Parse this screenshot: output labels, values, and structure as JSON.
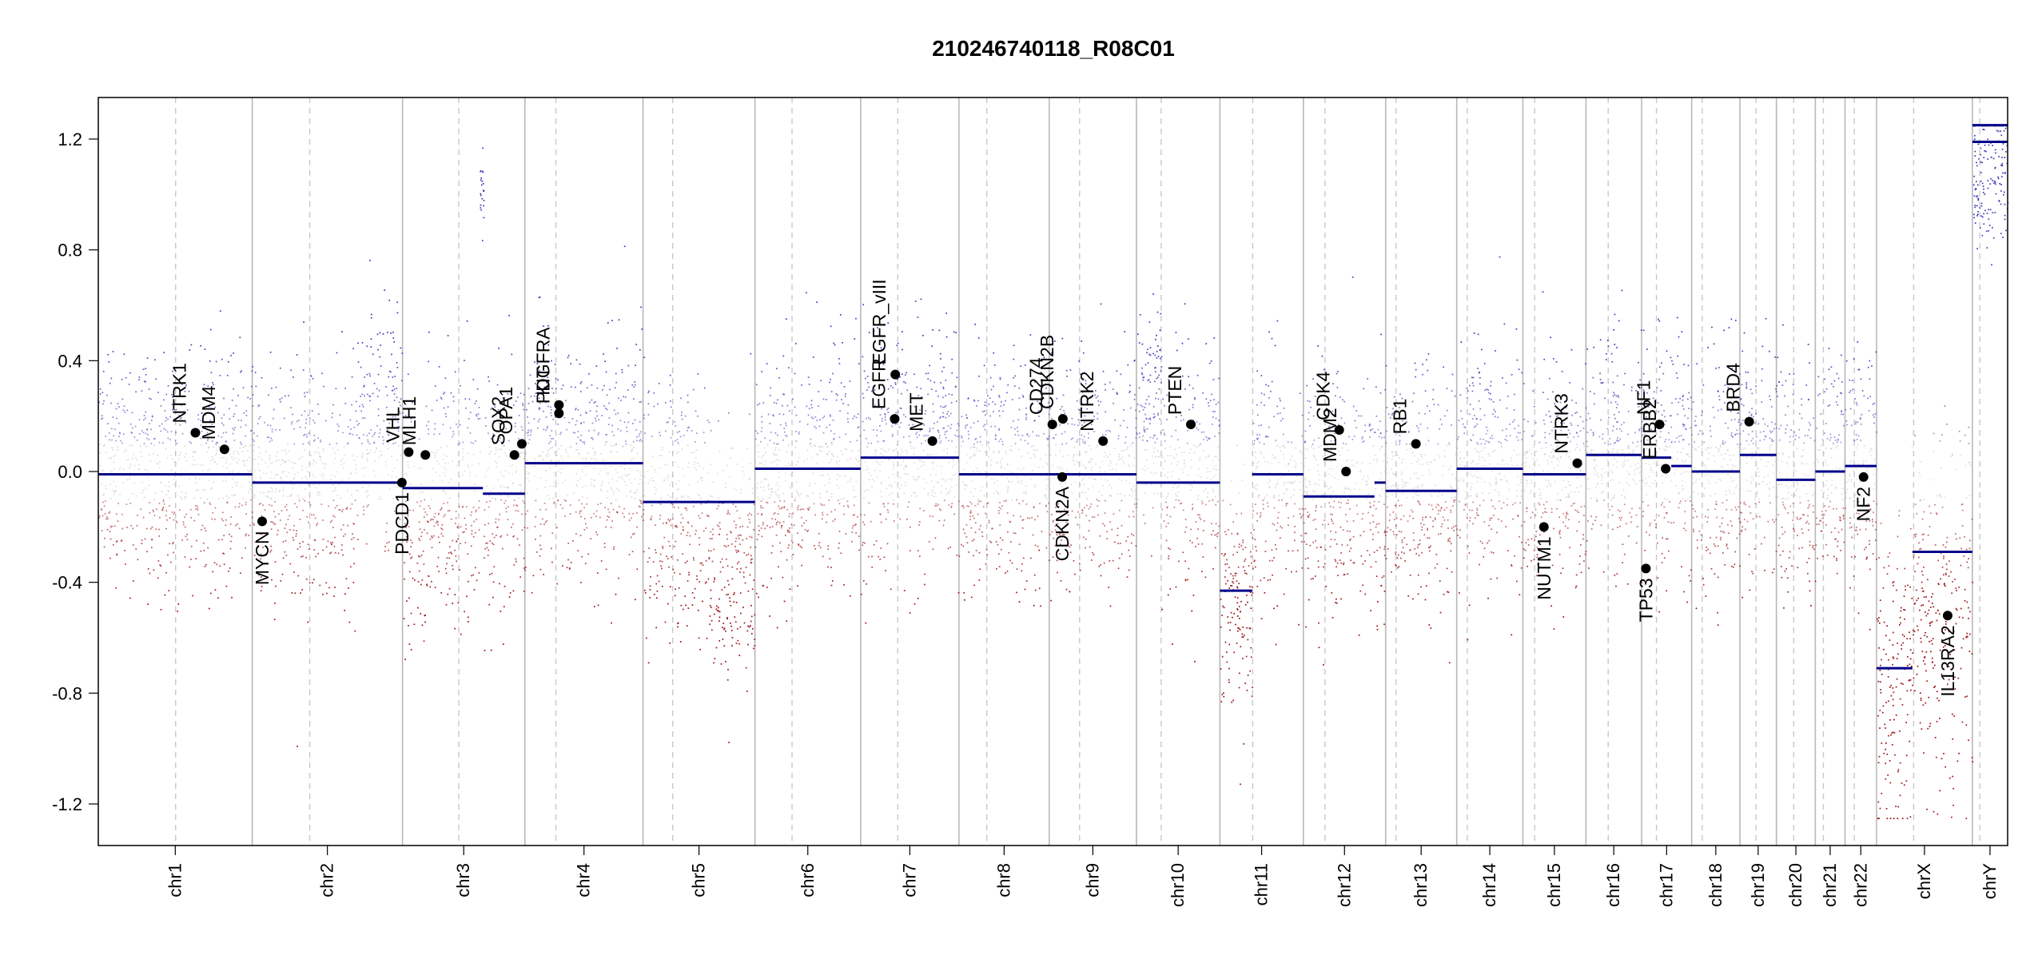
{
  "chart_data": {
    "type": "scatter",
    "title": "210246740118_R08C01",
    "xlabel": "",
    "ylabel": "",
    "ylim": [
      -1.35,
      1.35
    ],
    "y_ticks": [
      -1.2,
      -0.8,
      -0.4,
      0.0,
      0.4,
      0.8,
      1.2
    ],
    "y_tick_labels": [
      "-1.2",
      "-0.8",
      "-0.4",
      "0.0",
      "0.4",
      "0.8",
      "1.2"
    ],
    "grid": false,
    "x_units": "genome position (Mb, cumulative)",
    "colors": {
      "segment": "#00008b",
      "gain_point": "#3a3ab8",
      "loss_point": "#9b1010",
      "neutral_point": "#b0b0b0",
      "chrom_border": "#b8b8b8",
      "centromere": "#c8c8c8",
      "gene_marker": "#000000",
      "axis": "#000000"
    },
    "chromosomes": [
      {
        "name": "chr1",
        "length": 249,
        "centromere": 125
      },
      {
        "name": "chr2",
        "length": 243,
        "centromere": 93
      },
      {
        "name": "chr3",
        "length": 198,
        "centromere": 91
      },
      {
        "name": "chr4",
        "length": 191,
        "centromere": 50
      },
      {
        "name": "chr5",
        "length": 181,
        "centromere": 48
      },
      {
        "name": "chr6",
        "length": 171,
        "centromere": 60
      },
      {
        "name": "chr7",
        "length": 159,
        "centromere": 60
      },
      {
        "name": "chr8",
        "length": 146,
        "centromere": 45
      },
      {
        "name": "chr9",
        "length": 141,
        "centromere": 49
      },
      {
        "name": "chr10",
        "length": 135,
        "centromere": 40
      },
      {
        "name": "chr11",
        "length": 135,
        "centromere": 53
      },
      {
        "name": "chr12",
        "length": 133,
        "centromere": 35
      },
      {
        "name": "chr13",
        "length": 115,
        "centromere": 17
      },
      {
        "name": "chr14",
        "length": 107,
        "centromere": 17
      },
      {
        "name": "chr15",
        "length": 102,
        "centromere": 19
      },
      {
        "name": "chr16",
        "length": 90,
        "centromere": 36
      },
      {
        "name": "chr17",
        "length": 81,
        "centromere": 24
      },
      {
        "name": "chr18",
        "length": 78,
        "centromere": 17
      },
      {
        "name": "chr19",
        "length": 59,
        "centromere": 26
      },
      {
        "name": "chr20",
        "length": 63,
        "centromere": 28
      },
      {
        "name": "chr21",
        "length": 48,
        "centromere": 13
      },
      {
        "name": "chr22",
        "length": 51,
        "centromere": 15
      },
      {
        "name": "chrX",
        "length": 155,
        "centromere": 60
      },
      {
        "name": "chrY",
        "length": 57,
        "centromere": 12
      }
    ],
    "segments": [
      {
        "chrom": "chr1",
        "start": 0,
        "end": 249,
        "value": -0.01
      },
      {
        "chrom": "chr2",
        "start": 0,
        "end": 243,
        "value": -0.04
      },
      {
        "chrom": "chr3",
        "start": 0,
        "end": 130,
        "value": -0.06
      },
      {
        "chrom": "chr3",
        "start": 130,
        "end": 198,
        "value": -0.08
      },
      {
        "chrom": "chr4",
        "start": 0,
        "end": 191,
        "value": 0.03
      },
      {
        "chrom": "chr5",
        "start": 0,
        "end": 181,
        "value": -0.11
      },
      {
        "chrom": "chr6",
        "start": 0,
        "end": 171,
        "value": 0.01
      },
      {
        "chrom": "chr7",
        "start": 0,
        "end": 159,
        "value": 0.05
      },
      {
        "chrom": "chr8",
        "start": 0,
        "end": 146,
        "value": -0.01
      },
      {
        "chrom": "chr9",
        "start": 0,
        "end": 141,
        "value": -0.01
      },
      {
        "chrom": "chr10",
        "start": 0,
        "end": 135,
        "value": -0.04
      },
      {
        "chrom": "chr11",
        "start": 0,
        "end": 52,
        "value": -0.43
      },
      {
        "chrom": "chr11",
        "start": 52,
        "end": 135,
        "value": -0.01
      },
      {
        "chrom": "chr12",
        "start": 0,
        "end": 115,
        "value": -0.09
      },
      {
        "chrom": "chr12",
        "start": 115,
        "end": 133,
        "value": -0.04
      },
      {
        "chrom": "chr13",
        "start": 0,
        "end": 115,
        "value": -0.07
      },
      {
        "chrom": "chr14",
        "start": 0,
        "end": 107,
        "value": 0.01
      },
      {
        "chrom": "chr15",
        "start": 0,
        "end": 102,
        "value": -0.01
      },
      {
        "chrom": "chr16",
        "start": 0,
        "end": 90,
        "value": 0.06
      },
      {
        "chrom": "chr17",
        "start": 0,
        "end": 48,
        "value": 0.05
      },
      {
        "chrom": "chr17",
        "start": 48,
        "end": 81,
        "value": 0.02
      },
      {
        "chrom": "chr18",
        "start": 0,
        "end": 78,
        "value": 0.0
      },
      {
        "chrom": "chr19",
        "start": 0,
        "end": 59,
        "value": 0.06
      },
      {
        "chrom": "chr20",
        "start": 0,
        "end": 63,
        "value": -0.03
      },
      {
        "chrom": "chr21",
        "start": 0,
        "end": 48,
        "value": 0.0
      },
      {
        "chrom": "chr22",
        "start": 0,
        "end": 51,
        "value": 0.02
      },
      {
        "chrom": "chrX",
        "start": 0,
        "end": 58,
        "value": -0.71
      },
      {
        "chrom": "chrX",
        "start": 58,
        "end": 155,
        "value": -0.29
      },
      {
        "chrom": "chrY",
        "start": 0,
        "end": 57,
        "value": 1.19
      },
      {
        "chrom": "chrY",
        "start": 0,
        "end": 57,
        "value": 1.25
      }
    ],
    "point_profile": [
      {
        "chrom": "chr1",
        "mean": 0.0,
        "sd": 0.2
      },
      {
        "chrom": "chr2",
        "mean": -0.03,
        "sd": 0.2,
        "regions": [
          {
            "start": 170,
            "end": 243,
            "mean": 0.18
          }
        ]
      },
      {
        "chrom": "chr3",
        "mean": -0.06,
        "sd": 0.22,
        "regions": [
          {
            "start": 0,
            "end": 40,
            "mean": -0.2
          },
          {
            "start": 125,
            "end": 131,
            "mean": 1.0,
            "sd": 0.1
          }
        ]
      },
      {
        "chrom": "chr4",
        "mean": 0.05,
        "sd": 0.2
      },
      {
        "chrom": "chr5",
        "mean": -0.12,
        "sd": 0.22,
        "regions": [
          {
            "start": 100,
            "end": 181,
            "mean": -0.3
          }
        ]
      },
      {
        "chrom": "chr6",
        "mean": 0.01,
        "sd": 0.2
      },
      {
        "chrom": "chr7",
        "mean": 0.06,
        "sd": 0.2
      },
      {
        "chrom": "chr8",
        "mean": 0.0,
        "sd": 0.2
      },
      {
        "chrom": "chr9",
        "mean": 0.0,
        "sd": 0.2
      },
      {
        "chrom": "chr10",
        "mean": -0.02,
        "sd": 0.2,
        "regions": [
          {
            "start": 0,
            "end": 40,
            "mean": 0.22
          }
        ]
      },
      {
        "chrom": "chr11",
        "mean": -0.02,
        "sd": 0.2,
        "regions": [
          {
            "start": 0,
            "end": 52,
            "mean": -0.45
          }
        ]
      },
      {
        "chrom": "chr12",
        "mean": -0.08,
        "sd": 0.22
      },
      {
        "chrom": "chr13",
        "mean": -0.07,
        "sd": 0.2
      },
      {
        "chrom": "chr14",
        "mean": 0.02,
        "sd": 0.2
      },
      {
        "chrom": "chr15",
        "mean": -0.01,
        "sd": 0.2
      },
      {
        "chrom": "chr16",
        "mean": 0.06,
        "sd": 0.2
      },
      {
        "chrom": "chr17",
        "mean": 0.04,
        "sd": 0.2
      },
      {
        "chrom": "chr18",
        "mean": 0.0,
        "sd": 0.2
      },
      {
        "chrom": "chr19",
        "mean": 0.06,
        "sd": 0.2
      },
      {
        "chrom": "chr20",
        "mean": -0.03,
        "sd": 0.2
      },
      {
        "chrom": "chr21",
        "mean": 0.0,
        "sd": 0.2
      },
      {
        "chrom": "chr22",
        "mean": 0.02,
        "sd": 0.2
      },
      {
        "chrom": "chrX",
        "mean": -0.5,
        "sd": 0.3,
        "regions": [
          {
            "start": 0,
            "end": 58,
            "mean": -0.75
          }
        ]
      },
      {
        "chrom": "chrY",
        "mean": 1.1,
        "sd": 0.15
      }
    ],
    "genes": [
      {
        "name": "NTRK1",
        "chrom": "chr1",
        "pos": 157,
        "value": 0.14,
        "label_side": "above"
      },
      {
        "name": "MDM4",
        "chrom": "chr1",
        "pos": 204,
        "value": 0.08,
        "label_side": "above"
      },
      {
        "name": "MYCN",
        "chrom": "chr2",
        "pos": 16,
        "value": -0.18,
        "label_side": "below"
      },
      {
        "name": "PDCD1",
        "chrom": "chr2",
        "pos": 242,
        "value": -0.04,
        "label_side": "below"
      },
      {
        "name": "VHL",
        "chrom": "chr3",
        "pos": 10,
        "value": 0.07,
        "label_side": "above"
      },
      {
        "name": "MLH1",
        "chrom": "chr3",
        "pos": 37,
        "value": 0.06,
        "label_side": "above"
      },
      {
        "name": "SOX2",
        "chrom": "chr3",
        "pos": 181,
        "value": 0.06,
        "label_side": "above"
      },
      {
        "name": "OPA1",
        "chrom": "chr3",
        "pos": 193,
        "value": 0.1,
        "label_side": "above"
      },
      {
        "name": "KIT",
        "chrom": "chr4",
        "pos": 55,
        "value": 0.24,
        "label_side": "above"
      },
      {
        "name": "PDGFRA",
        "chrom": "chr4",
        "pos": 55,
        "value": 0.21,
        "label_side": "above"
      },
      {
        "name": "EGFR",
        "chrom": "chr7",
        "pos": 55,
        "value": 0.19,
        "label_side": "above"
      },
      {
        "name": "EGFR_vIII",
        "chrom": "chr7",
        "pos": 56,
        "value": 0.35,
        "label_side": "above"
      },
      {
        "name": "MET",
        "chrom": "chr7",
        "pos": 116,
        "value": 0.11,
        "label_side": "above"
      },
      {
        "name": "CD274",
        "chrom": "chr9",
        "pos": 5,
        "value": 0.17,
        "label_side": "above"
      },
      {
        "name": "CDKN2B",
        "chrom": "chr9",
        "pos": 22,
        "value": 0.19,
        "label_side": "above"
      },
      {
        "name": "CDKN2A",
        "chrom": "chr9",
        "pos": 21,
        "value": -0.02,
        "label_side": "below"
      },
      {
        "name": "NTRK2",
        "chrom": "chr9",
        "pos": 87,
        "value": 0.11,
        "label_side": "above"
      },
      {
        "name": "PTEN",
        "chrom": "chr10",
        "pos": 88,
        "value": 0.17,
        "label_side": "above"
      },
      {
        "name": "CDK4",
        "chrom": "chr12",
        "pos": 58,
        "value": 0.15,
        "label_side": "above"
      },
      {
        "name": "MDM2",
        "chrom": "chr12",
        "pos": 69,
        "value": 0.0,
        "label_side": "above"
      },
      {
        "name": "RB1",
        "chrom": "chr13",
        "pos": 49,
        "value": 0.1,
        "label_side": "above"
      },
      {
        "name": "NUTM1",
        "chrom": "chr15",
        "pos": 34,
        "value": -0.2,
        "label_side": "below"
      },
      {
        "name": "NTRK3",
        "chrom": "chr15",
        "pos": 88,
        "value": 0.03,
        "label_side": "above"
      },
      {
        "name": "TP53",
        "chrom": "chr17",
        "pos": 7,
        "value": -0.35,
        "label_side": "below"
      },
      {
        "name": "NF1",
        "chrom": "chr17",
        "pos": 29,
        "value": 0.17,
        "label_side": "above"
      },
      {
        "name": "ERBB2",
        "chrom": "chr17",
        "pos": 39,
        "value": 0.01,
        "label_side": "above"
      },
      {
        "name": "BRD4",
        "chrom": "chr19",
        "pos": 15,
        "value": 0.18,
        "label_side": "above"
      },
      {
        "name": "NF2",
        "chrom": "chr22",
        "pos": 30,
        "value": -0.02,
        "label_side": "below"
      },
      {
        "name": "IL13RA2",
        "chrom": "chrX",
        "pos": 115,
        "value": -0.52,
        "label_side": "below"
      }
    ]
  }
}
